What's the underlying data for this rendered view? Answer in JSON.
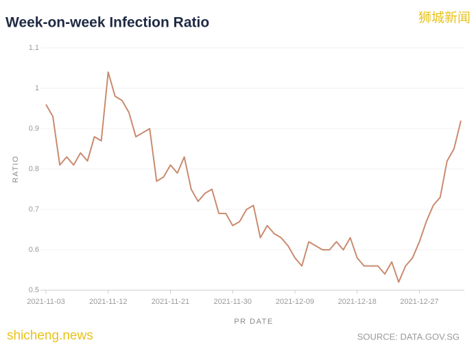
{
  "chart_data": {
    "type": "line",
    "title": "Week-on-week Infection Ratio",
    "xlabel": "PR DATE",
    "ylabel": "RATIO",
    "source": "SOURCE: DATA.GOV.SG",
    "watermarks": [
      "狮城新闻",
      "shicheng.news"
    ],
    "x": [
      "2021-11-03",
      "2021-11-04",
      "2021-11-05",
      "2021-11-06",
      "2021-11-07",
      "2021-11-08",
      "2021-11-09",
      "2021-11-10",
      "2021-11-11",
      "2021-11-12",
      "2021-11-13",
      "2021-11-14",
      "2021-11-15",
      "2021-11-16",
      "2021-11-17",
      "2021-11-18",
      "2021-11-19",
      "2021-11-20",
      "2021-11-21",
      "2021-11-22",
      "2021-11-23",
      "2021-11-24",
      "2021-11-25",
      "2021-11-26",
      "2021-11-27",
      "2021-11-28",
      "2021-11-29",
      "2021-11-30",
      "2021-12-01",
      "2021-12-02",
      "2021-12-03",
      "2021-12-04",
      "2021-12-05",
      "2021-12-06",
      "2021-12-07",
      "2021-12-08",
      "2021-12-09",
      "2021-12-10",
      "2021-12-11",
      "2021-12-12",
      "2021-12-13",
      "2021-12-14",
      "2021-12-15",
      "2021-12-16",
      "2021-12-17",
      "2021-12-18",
      "2021-12-19",
      "2021-12-20",
      "2021-12-21",
      "2021-12-22",
      "2021-12-23",
      "2021-12-24",
      "2021-12-25",
      "2021-12-26",
      "2021-12-27",
      "2021-12-28",
      "2021-12-29",
      "2021-12-30",
      "2021-12-31",
      "2022-01-01",
      "2022-01-02"
    ],
    "series": [
      {
        "name": "RATIO",
        "color": "#c98a6e",
        "values": [
          0.96,
          0.93,
          0.81,
          0.83,
          0.81,
          0.84,
          0.82,
          0.88,
          0.87,
          1.04,
          0.98,
          0.97,
          0.94,
          0.88,
          0.89,
          0.9,
          0.77,
          0.78,
          0.81,
          0.79,
          0.83,
          0.75,
          0.72,
          0.74,
          0.75,
          0.69,
          0.69,
          0.66,
          0.67,
          0.7,
          0.71,
          0.63,
          0.66,
          0.64,
          0.63,
          0.61,
          0.58,
          0.56,
          0.62,
          0.61,
          0.6,
          0.6,
          0.62,
          0.6,
          0.63,
          0.58,
          0.56,
          0.56,
          0.56,
          0.54,
          0.57,
          0.52,
          0.56,
          0.58,
          0.62,
          0.67,
          0.71,
          0.73,
          0.82,
          0.85,
          0.92
        ]
      }
    ],
    "xlim": [
      "2021-11-03",
      "2022-01-02"
    ],
    "xticks": [
      "2021-11-03",
      "2021-11-12",
      "2021-11-21",
      "2021-11-30",
      "2021-12-09",
      "2021-12-18",
      "2021-12-27"
    ],
    "ylim": [
      0.5,
      1.1
    ],
    "yticks": [
      0.5,
      0.6,
      0.7,
      0.8,
      0.9,
      1,
      1.1
    ],
    "grid": true
  }
}
